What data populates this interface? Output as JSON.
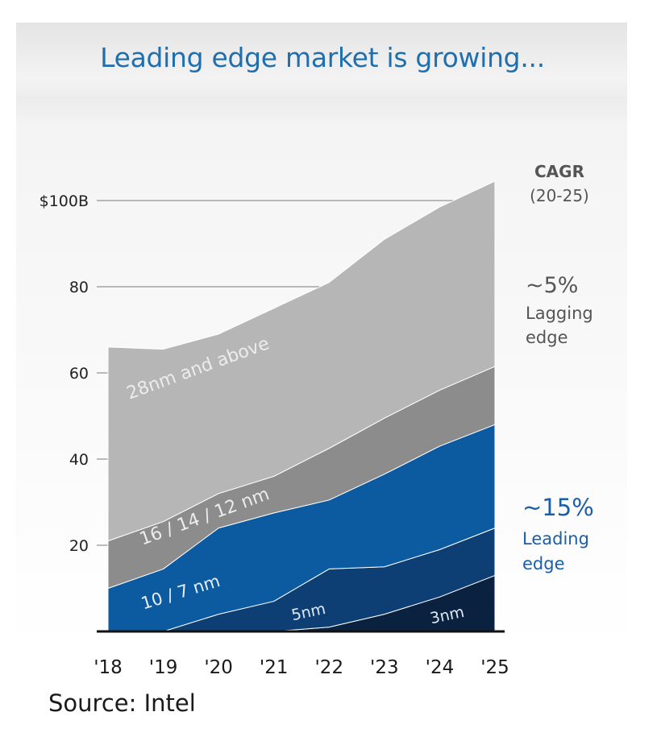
{
  "chart_data": {
    "type": "area",
    "title": "Leading edge market is growing...",
    "stacked": true,
    "x": [
      "'18",
      "'19",
      "'20",
      "'21",
      "'22",
      "'23",
      "'24",
      "'25"
    ],
    "y_tick_values": [
      20,
      40,
      60,
      80,
      100
    ],
    "y_tick_labels": [
      "20",
      "40",
      "60",
      "80",
      "$100B"
    ],
    "ylim": [
      0,
      105
    ],
    "series": [
      {
        "name": "3nm",
        "label": "3nm",
        "color": "#0a2240",
        "values": [
          0,
          0,
          0,
          0,
          1,
          4,
          8,
          13
        ]
      },
      {
        "name": "5nm",
        "label": "5nm",
        "color": "#0d3f74",
        "values": [
          0,
          0,
          4,
          7,
          13.5,
          11,
          11,
          11
        ]
      },
      {
        "name": "10 / 7 nm",
        "label": "10 / 7 nm",
        "color": "#0c5aa0",
        "values": [
          10,
          14.5,
          20,
          20.5,
          16,
          21.5,
          24,
          24
        ]
      },
      {
        "name": "16 / 14 / 12 nm",
        "label": "16 / 14 / 12 nm",
        "color": "#8c8c8c",
        "values": [
          11,
          11,
          8,
          8.5,
          12,
          13,
          13,
          13.5
        ]
      },
      {
        "name": "28nm and above",
        "label": "28nm and above",
        "color": "#b6b6b6",
        "values": [
          45,
          40,
          37,
          39,
          38.5,
          41.5,
          42.5,
          43
        ]
      }
    ],
    "cagr": {
      "title": "CAGR",
      "period": "(20-25)",
      "lagging": {
        "value": "~5%",
        "label_line1": "Lagging",
        "label_line2": "edge"
      },
      "leading": {
        "value": "~15%",
        "label_line1": "Leading",
        "label_line2": "edge"
      }
    },
    "colors": {
      "title": "#1f6fae",
      "cagr_lagging": "#555555",
      "cagr_leading": "#1a5fa8"
    }
  },
  "footer": {
    "source": "Source: Intel"
  }
}
